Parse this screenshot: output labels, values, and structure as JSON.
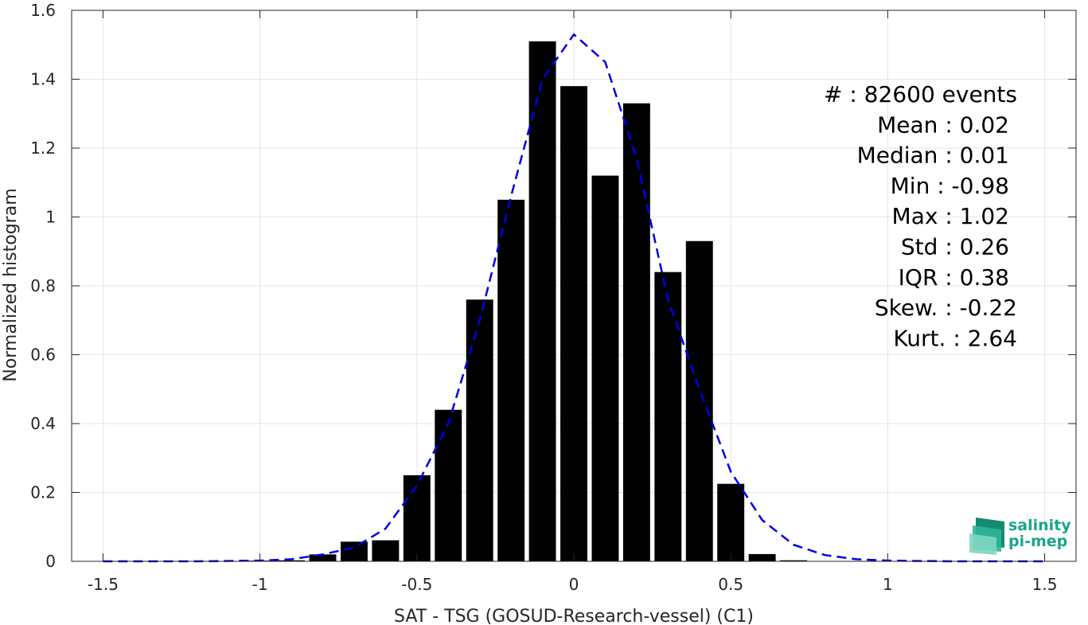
{
  "chart_data": {
    "type": "bar",
    "xlabel": "SAT - TSG (GOSUD-Research-vessel) (C1)",
    "ylabel": "Normalized histogram",
    "xlim": [
      -1.6,
      1.6
    ],
    "ylim": [
      0,
      1.6
    ],
    "grid": true,
    "xticks": [
      -1.5,
      -1,
      -0.5,
      0,
      0.5,
      1,
      1.5
    ],
    "xtick_labels": [
      "-1.5",
      "-1",
      "-0.5",
      "0",
      "0.5",
      "1",
      "1.5"
    ],
    "yticks": [
      0,
      0.2,
      0.4,
      0.6,
      0.8,
      1,
      1.2,
      1.4,
      1.6
    ],
    "ytick_labels": [
      "0",
      "0.2",
      "0.4",
      "0.6",
      "0.8",
      "1",
      "1.2",
      "1.4",
      "1.6"
    ],
    "bar_color": "#000000",
    "bars": [
      {
        "x": -1.0,
        "value": 0.002
      },
      {
        "x": -0.9,
        "value": 0.003
      },
      {
        "x": -0.8,
        "value": 0.02
      },
      {
        "x": -0.7,
        "value": 0.057
      },
      {
        "x": -0.6,
        "value": 0.061
      },
      {
        "x": -0.5,
        "value": 0.25
      },
      {
        "x": -0.4,
        "value": 0.44
      },
      {
        "x": -0.3,
        "value": 0.76
      },
      {
        "x": -0.2,
        "value": 1.05
      },
      {
        "x": -0.1,
        "value": 1.51
      },
      {
        "x": 0.0,
        "value": 1.38
      },
      {
        "x": 0.1,
        "value": 1.12
      },
      {
        "x": 0.2,
        "value": 1.33
      },
      {
        "x": 0.3,
        "value": 0.84
      },
      {
        "x": 0.4,
        "value": 0.93
      },
      {
        "x": 0.5,
        "value": 0.225
      },
      {
        "x": 0.6,
        "value": 0.021
      },
      {
        "x": 0.7,
        "value": 0.003
      },
      {
        "x": 0.8,
        "value": 0.001
      }
    ],
    "fit_curve": {
      "style": "dashed",
      "color": "#0000e6",
      "points": [
        [
          -1.5,
          0.0
        ],
        [
          -1.2,
          0.0
        ],
        [
          -1.0,
          0.002
        ],
        [
          -0.9,
          0.006
        ],
        [
          -0.8,
          0.02
        ],
        [
          -0.7,
          0.04
        ],
        [
          -0.6,
          0.095
        ],
        [
          -0.5,
          0.22
        ],
        [
          -0.4,
          0.4
        ],
        [
          -0.3,
          0.7
        ],
        [
          -0.2,
          1.06
        ],
        [
          -0.1,
          1.4
        ],
        [
          0.0,
          1.53
        ],
        [
          0.1,
          1.45
        ],
        [
          0.2,
          1.17
        ],
        [
          0.3,
          0.76
        ],
        [
          0.4,
          0.5
        ],
        [
          0.5,
          0.26
        ],
        [
          0.6,
          0.12
        ],
        [
          0.7,
          0.048
        ],
        [
          0.8,
          0.018
        ],
        [
          0.9,
          0.006
        ],
        [
          1.0,
          0.002
        ],
        [
          1.2,
          0.0
        ],
        [
          1.5,
          0.0
        ]
      ]
    },
    "stats": [
      {
        "label": "#  : 82600 events"
      },
      {
        "label": "Mean : 0.02"
      },
      {
        "label": "Median : 0.01"
      },
      {
        "label": "Min : -0.98"
      },
      {
        "label": "Max : 1.02"
      },
      {
        "label": "Std : 0.26"
      },
      {
        "label": "IQR : 0.38"
      },
      {
        "label": "Skew. : -0.22"
      },
      {
        "label": "Kurt. : 2.64"
      }
    ]
  },
  "logo": {
    "line1": "salinity",
    "line2": "pi-mep",
    "color": "#1aa58c"
  }
}
